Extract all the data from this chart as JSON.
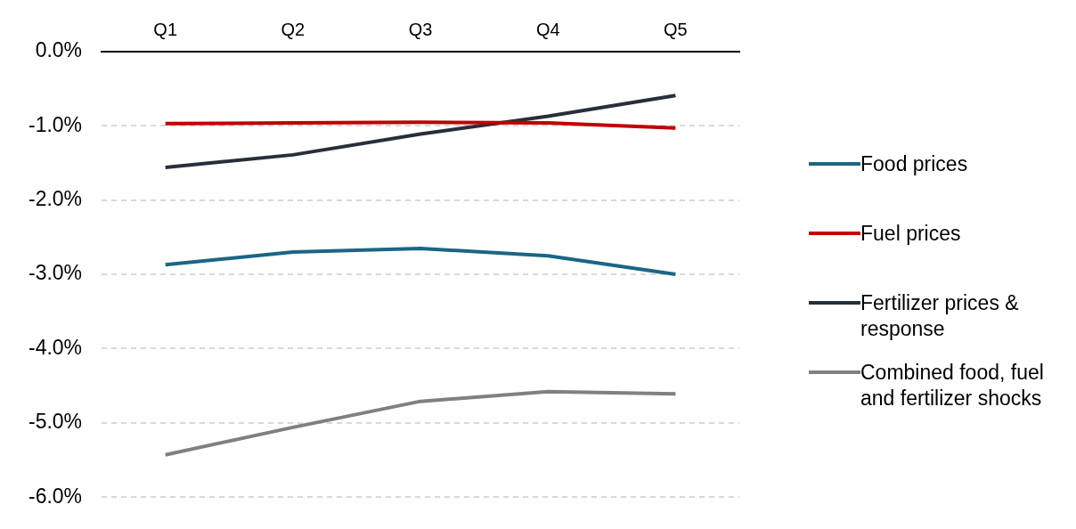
{
  "chart_data": {
    "type": "line",
    "categories": [
      "Q1",
      "Q2",
      "Q3",
      "Q4",
      "Q5"
    ],
    "series": [
      {
        "name": "Food prices",
        "color": "#1b6585",
        "values": [
          -2.87,
          -2.7,
          -2.65,
          -2.75,
          -3.0
        ]
      },
      {
        "name": "Fuel prices",
        "color": "#c00000",
        "values": [
          -0.97,
          -0.96,
          -0.95,
          -0.96,
          -1.03
        ]
      },
      {
        "name": "Fertilizer prices & response",
        "color": "#262f3a",
        "values": [
          -1.56,
          -1.39,
          -1.11,
          -0.87,
          -0.59
        ]
      },
      {
        "name": "Combined food, fuel and fertilizer shocks",
        "color": "#808080",
        "values": [
          -5.43,
          -5.06,
          -4.71,
          -4.58,
          -4.61
        ]
      }
    ],
    "ylim": [
      -6,
      0
    ],
    "yticks": [
      {
        "value": 0,
        "label": "0.0%"
      },
      {
        "value": -1,
        "label": "-1.0%"
      },
      {
        "value": -2,
        "label": "-2.0%"
      },
      {
        "value": -3,
        "label": "-3.0%"
      },
      {
        "value": -4,
        "label": "-4.0%"
      },
      {
        "value": -5,
        "label": "-5.0%"
      },
      {
        "value": -6,
        "label": "-6.0%"
      }
    ],
    "grid": "y",
    "legend": "right",
    "marker": "none",
    "line_style": "solid"
  }
}
